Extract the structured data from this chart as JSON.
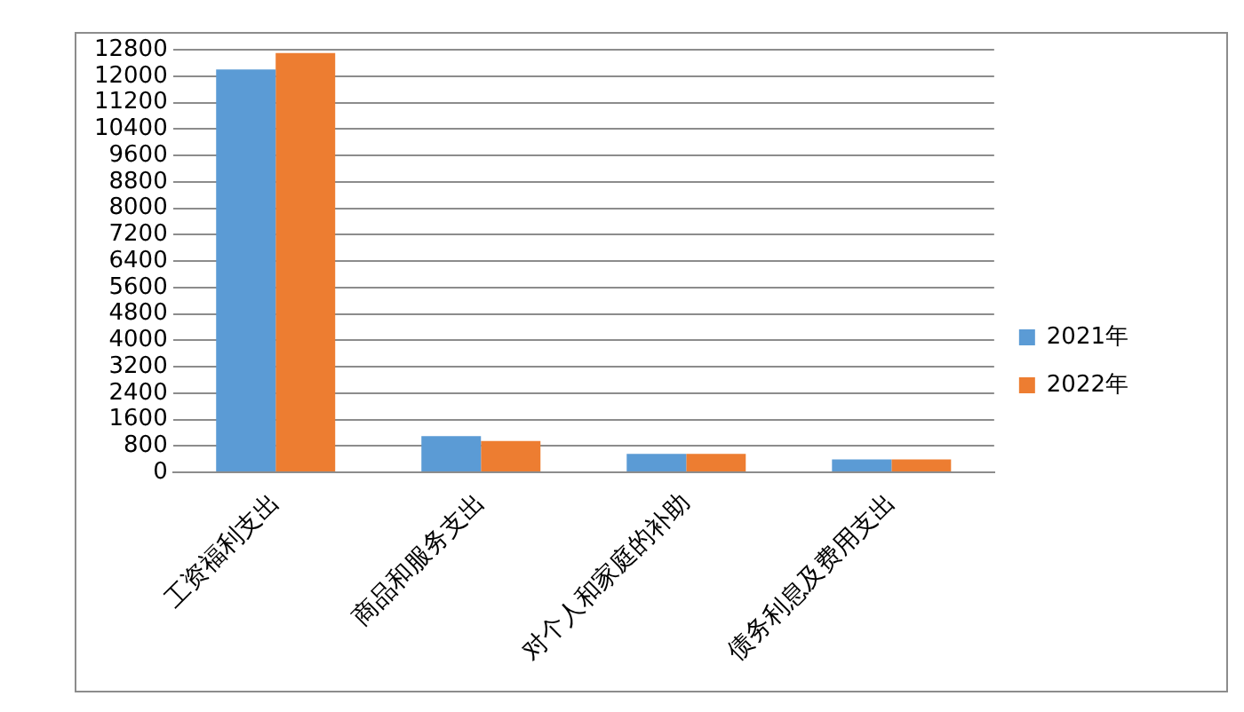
{
  "chart_data": {
    "type": "bar",
    "categories": [
      "工资福利支出",
      "商品和服务支出",
      "对个人和家庭的补助",
      "债务利息及费用支出"
    ],
    "series": [
      {
        "name": "2021年",
        "color": "#5b9bd5",
        "values": [
          12200,
          1100,
          560,
          390
        ]
      },
      {
        "name": "2022年",
        "color": "#ed7d31",
        "values": [
          12700,
          950,
          560,
          390
        ]
      }
    ],
    "ylim": [
      0,
      12800
    ],
    "yticks": [
      0,
      800,
      1600,
      2400,
      3200,
      4000,
      4800,
      5600,
      6400,
      7200,
      8000,
      8800,
      9600,
      10400,
      11200,
      12000,
      12800
    ],
    "grid": "y",
    "legend": "right"
  }
}
